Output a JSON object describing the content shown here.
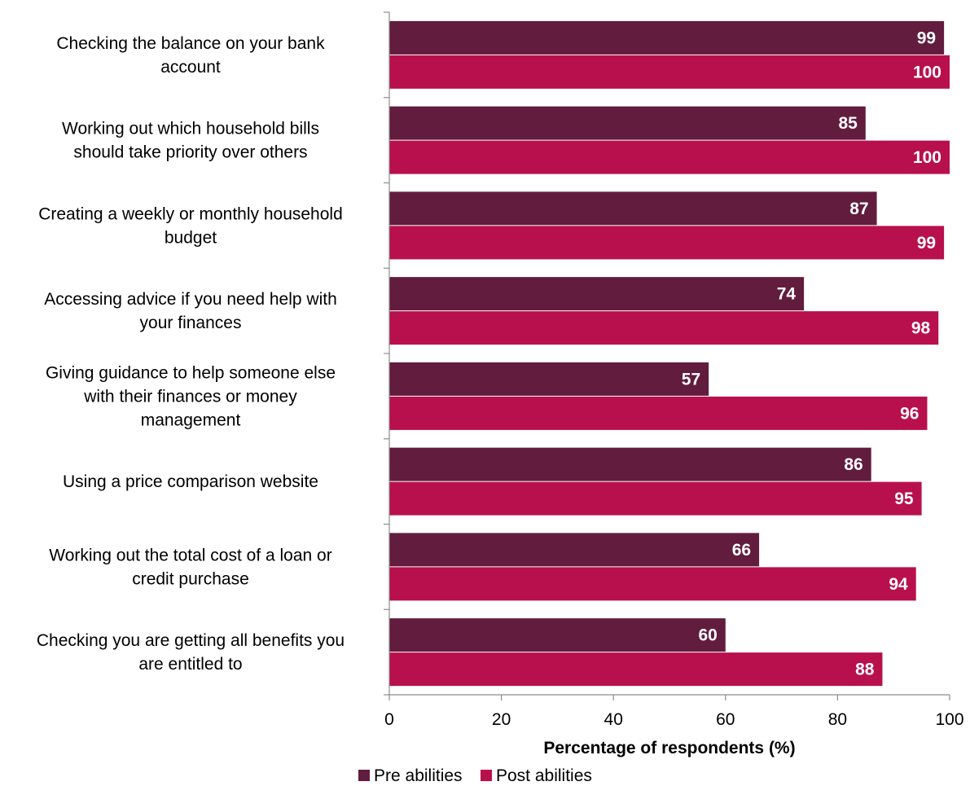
{
  "chart_data": {
    "type": "bar",
    "orientation": "horizontal",
    "categories": [
      [
        "Checking the balance on your bank",
        "account"
      ],
      [
        "Working out which household bills",
        "should take priority over others"
      ],
      [
        "Creating a weekly or monthly household",
        "budget"
      ],
      [
        "Accessing advice if you need help with",
        "your finances"
      ],
      [
        "Giving guidance to help someone else",
        "with their finances or money",
        "management"
      ],
      [
        "Using a price comparison website"
      ],
      [
        "Working out the total cost of a loan or",
        "credit purchase"
      ],
      [
        "Checking you are getting all benefits you",
        "are entitled to"
      ]
    ],
    "series": [
      {
        "name": "Pre abilities",
        "color": "#621c3e",
        "values": [
          99,
          85,
          87,
          74,
          57,
          86,
          66,
          60
        ]
      },
      {
        "name": "Post abilities",
        "color": "#b8104c",
        "values": [
          100,
          100,
          99,
          98,
          96,
          95,
          94,
          88
        ]
      }
    ],
    "xlabel": "Percentage of respondents (%)",
    "xlim": [
      0,
      100
    ],
    "xticks": [
      0,
      20,
      40,
      60,
      80,
      100
    ],
    "grid": false,
    "legend_position": "bottom"
  }
}
